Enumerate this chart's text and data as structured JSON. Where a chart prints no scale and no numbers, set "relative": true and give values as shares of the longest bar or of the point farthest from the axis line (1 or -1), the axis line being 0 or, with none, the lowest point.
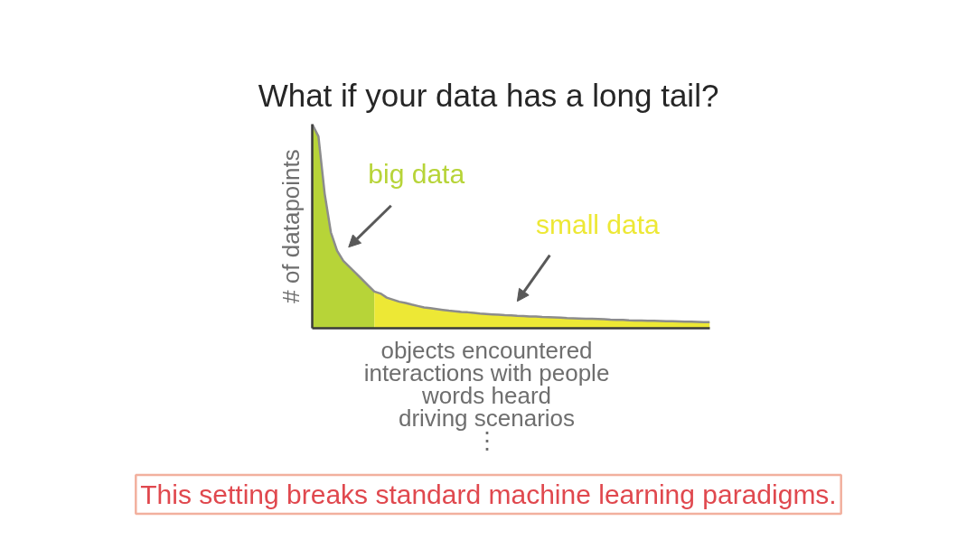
{
  "chart_data": {
    "type": "area",
    "title": "What if your data has a long tail?",
    "xlabel": "objects encountered\ninteractions with people\nwords heard\ndriving scenarios\n⋮",
    "ylabel": "# of datapoints",
    "annotations": [
      "This setting breaks standard machine learning paradigms."
    ],
    "relative": true,
    "categories": [
      null,
      null,
      null,
      null,
      null,
      null,
      null,
      null,
      null,
      null,
      null,
      null,
      null,
      null,
      null,
      null,
      null,
      null,
      null,
      null,
      null,
      null,
      null,
      null,
      null,
      null,
      null,
      null,
      null,
      null,
      null,
      null,
      null,
      null,
      null,
      null,
      null,
      null,
      null,
      null,
      null,
      null,
      null,
      null,
      null,
      null,
      null,
      null,
      null,
      null,
      null,
      null,
      null,
      null,
      null,
      null,
      null,
      null,
      null,
      null,
      null,
      null,
      null,
      null,
      null
    ],
    "series": [
      {
        "name": "big data",
        "color": "#b7d438",
        "values": [
          1.0,
          0.94,
          0.66,
          0.47,
          0.38,
          0.33,
          0.3,
          0.27,
          0.24,
          0.21,
          0.18,
          null,
          null,
          null,
          null,
          null,
          null,
          null,
          null,
          null,
          null,
          null,
          null,
          null,
          null,
          null,
          null,
          null,
          null,
          null,
          null,
          null,
          null,
          null,
          null,
          null,
          null,
          null,
          null,
          null,
          null,
          null,
          null,
          null,
          null,
          null,
          null,
          null,
          null,
          null,
          null,
          null,
          null,
          null,
          null,
          null,
          null,
          null,
          null,
          null,
          null,
          null,
          null,
          null,
          null
        ]
      },
      {
        "name": "small data",
        "color": "#ede835",
        "values": [
          null,
          null,
          null,
          null,
          null,
          null,
          null,
          null,
          null,
          null,
          0.18,
          0.17,
          0.15,
          0.14,
          0.13,
          0.124,
          0.116,
          0.109,
          0.102,
          0.098,
          0.094,
          0.09,
          0.086,
          0.083,
          0.08,
          0.078,
          0.075,
          0.072,
          0.07,
          0.068,
          0.066,
          0.064,
          0.063,
          0.061,
          0.06,
          0.058,
          0.057,
          0.055,
          0.054,
          0.053,
          0.052,
          0.05,
          0.049,
          0.048,
          0.047,
          0.046,
          0.045,
          0.044,
          0.042,
          0.041,
          0.041,
          0.039,
          0.038,
          0.038,
          0.037,
          0.036,
          0.035,
          0.034,
          0.034,
          0.033,
          0.032,
          0.032,
          0.031,
          0.03,
          0.03
        ]
      },
      {
        "type": "line",
        "color": "#8c8c8c",
        "values": [
          1.0,
          0.94,
          0.66,
          0.47,
          0.38,
          0.33,
          0.3,
          0.27,
          0.24,
          0.21,
          0.18,
          0.17,
          0.15,
          0.14,
          0.13,
          0.124,
          0.116,
          0.109,
          0.102,
          0.098,
          0.094,
          0.09,
          0.086,
          0.083,
          0.08,
          0.078,
          0.075,
          0.072,
          0.07,
          0.068,
          0.066,
          0.064,
          0.063,
          0.061,
          0.06,
          0.058,
          0.057,
          0.055,
          0.054,
          0.053,
          0.052,
          0.05,
          0.049,
          0.048,
          0.047,
          0.046,
          0.045,
          0.044,
          0.042,
          0.041,
          0.041,
          0.039,
          0.038,
          0.038,
          0.037,
          0.036,
          0.035,
          0.034,
          0.034,
          0.033,
          0.032,
          0.032,
          0.031,
          0.03,
          0.03
        ]
      }
    ]
  }
}
